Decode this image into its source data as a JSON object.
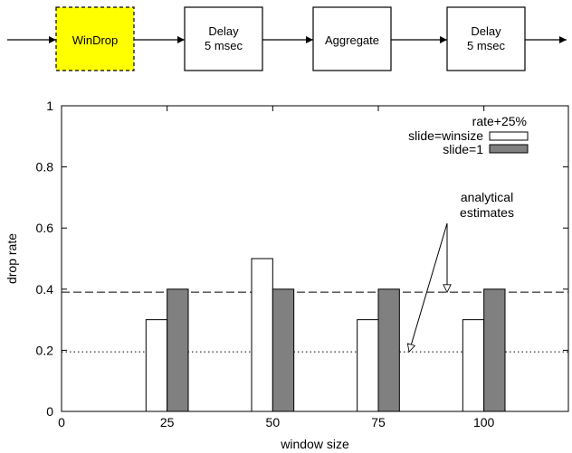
{
  "pipeline": {
    "boxes": [
      {
        "label_lines": [
          "WinDrop"
        ],
        "highlighted": true
      },
      {
        "label_lines": [
          "Delay",
          "5 msec"
        ],
        "highlighted": false
      },
      {
        "label_lines": [
          "Aggregate"
        ],
        "highlighted": false
      },
      {
        "label_lines": [
          "Delay",
          "5 msec"
        ],
        "highlighted": false
      }
    ],
    "highlight_color": "#ffff00"
  },
  "chart_data": {
    "type": "bar",
    "xlabel": "window size",
    "ylabel": "drop rate",
    "xlim": [
      0,
      120
    ],
    "ylim": [
      0,
      1
    ],
    "xticks": [
      "0",
      "25",
      "50",
      "75",
      "100"
    ],
    "xtick_values": [
      0,
      25,
      50,
      75,
      100
    ],
    "yticks": [
      "0",
      "0.2",
      "0.4",
      "0.6",
      "0.8",
      "1"
    ],
    "ytick_values": [
      0,
      0.2,
      0.4,
      0.6,
      0.8,
      1
    ],
    "categories": [
      25,
      50,
      75,
      100
    ],
    "series": [
      {
        "name": "slide=winsize",
        "values": [
          0.3,
          0.5,
          0.3,
          0.3
        ],
        "color": "#ffffff"
      },
      {
        "name": "slide=1",
        "values": [
          0.4,
          0.4,
          0.4,
          0.4
        ],
        "color": "#808080"
      }
    ],
    "reference_lines": [
      {
        "y": 0.39,
        "style": "dashed"
      },
      {
        "y": 0.195,
        "style": "dotted"
      }
    ],
    "legend_header": "rate+25%",
    "legend_placement": "top-right",
    "annotation": {
      "lines": [
        "analytical",
        "estimates"
      ],
      "arrow_targets_y": [
        0.39,
        0.195
      ]
    },
    "grid": false
  }
}
